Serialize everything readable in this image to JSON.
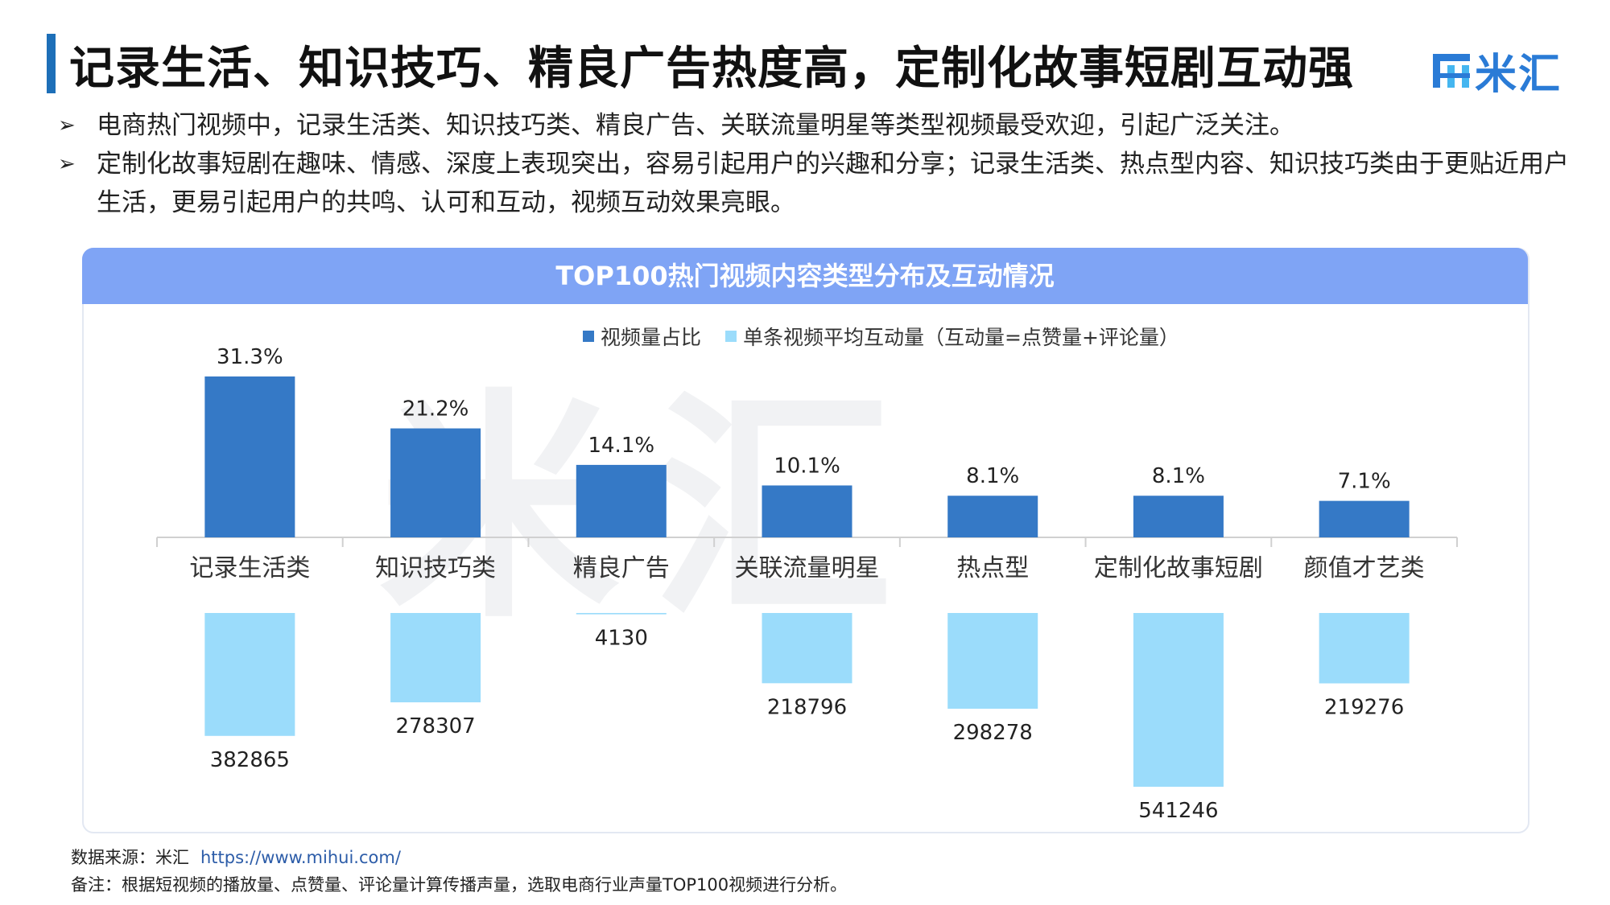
{
  "header": {
    "title": "记录生活、知识技巧、精良广告热度高，定制化故事短剧互动强",
    "logo_text": "米汇"
  },
  "bullets": [
    "电商热门视频中，记录生活类、知识技巧类、精良广告、关联流量明星等类型视频最受欢迎，引起广泛关注。",
    "定制化故事短剧在趣味、情感、深度上表现突出，容易引起用户的兴趣和分享；记录生活类、热点型内容、知识技巧类由于更贴近用户生活，更易引起用户的共鸣、认可和互动，视频互动效果亮眼。"
  ],
  "bullet_marker": "➢",
  "watermark": "米汇",
  "footer": {
    "source_label": "数据来源：米汇",
    "source_link": "https://www.mihui.com/",
    "note": "备注：根据短视频的播放量、点赞量、评论量计算传播声量，选取电商行业声量TOP100视频进行分析。"
  },
  "chart_data": {
    "type": "bar",
    "title": "TOP100热门视频内容类型分布及互动情况",
    "categories": [
      "记录生活类",
      "知识技巧类",
      "精良广告",
      "关联流量明星",
      "热点型",
      "定制化故事短剧",
      "颜值才艺类"
    ],
    "series": [
      {
        "name": "视频量占比",
        "values": [
          31.3,
          21.2,
          14.1,
          10.1,
          8.1,
          8.1,
          7.1
        ],
        "labels": [
          "31.3%",
          "21.2%",
          "14.1%",
          "10.1%",
          "8.1%",
          "8.1%",
          "7.1%"
        ],
        "color": "#3579c6",
        "direction": "up"
      },
      {
        "name": "单条视频平均互动量（互动量=点赞量+评论量）",
        "values": [
          382865,
          278307,
          4130,
          218796,
          298278,
          541246,
          219276
        ],
        "labels": [
          "382865",
          "278307",
          "4130",
          "218796",
          "298278",
          "541246",
          "219276"
        ],
        "color": "#9bdcfb",
        "direction": "down"
      }
    ],
    "legend_position": "top-center",
    "grid": false
  }
}
